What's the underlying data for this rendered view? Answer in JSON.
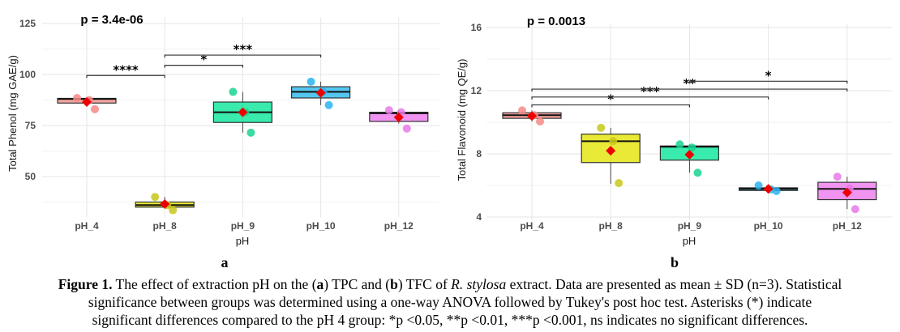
{
  "chart_data": [
    {
      "type": "box",
      "panel_label": "a",
      "title": "p = 3.4e-06",
      "xlabel": "pH",
      "ylabel": "Total Phenol (mg GAE/g)",
      "categories": [
        "pH_4",
        "pH_8",
        "pH_9",
        "pH_10",
        "pH_12"
      ],
      "ylim": [
        30,
        128
      ],
      "yticks": [
        50,
        75,
        100,
        125
      ],
      "grid": true,
      "colors": {
        "fill": [
          "#f4a09c",
          "#e8e82c",
          "#2eeaa8",
          "#4ac4ee",
          "#f08ef0"
        ],
        "points": [
          "#f48a86",
          "#c8c81c",
          "#18d490",
          "#2cb4ee",
          "#e87ae8"
        ],
        "mean": "#ee0000"
      },
      "boxes": [
        {
          "q1": 86.0,
          "median": 88.0,
          "q3": 88.3,
          "lo": 85.5,
          "hi": 88.5,
          "mean": 86.5,
          "points": [
            88.5,
            87.5,
            83.0
          ]
        },
        {
          "q1": 35.0,
          "median": 36.0,
          "q3": 37.5,
          "lo": 34.5,
          "hi": 40.0,
          "mean": 36.5,
          "points": [
            40.0,
            36.0,
            33.5
          ]
        },
        {
          "q1": 76.5,
          "median": 81.5,
          "q3": 86.5,
          "lo": 71.5,
          "hi": 91.5,
          "mean": 81.5,
          "points": [
            91.5,
            81.5,
            71.5
          ]
        },
        {
          "q1": 88.5,
          "median": 91.5,
          "q3": 94.0,
          "lo": 85.0,
          "hi": 96.5,
          "mean": 91.0,
          "points": [
            96.5,
            91.5,
            85.0
          ]
        },
        {
          "q1": 77.0,
          "median": 81.0,
          "q3": 81.5,
          "lo": 76.0,
          "hi": 82.5,
          "mean": 79.0,
          "points": [
            82.5,
            81.5,
            73.5
          ]
        }
      ],
      "comparisons": [
        {
          "from": "pH_4",
          "to": "pH_8",
          "y": 99.5,
          "label": "****"
        },
        {
          "from": "pH_8",
          "to": "pH_9",
          "y": 104.5,
          "label": "*"
        },
        {
          "from": "pH_8",
          "to": "pH_10",
          "y": 109.5,
          "label": "***"
        }
      ]
    },
    {
      "type": "box",
      "panel_label": "b",
      "title": "p = 0.0013",
      "xlabel": "pH",
      "ylabel": "Total Flavonoid (mg QE/g)",
      "categories": [
        "pH_4",
        "pH_8",
        "pH_9",
        "pH_10",
        "pH_12"
      ],
      "ylim": [
        3.8,
        16.2
      ],
      "yticks": [
        4,
        8,
        12,
        16
      ],
      "grid": true,
      "colors": {
        "fill": [
          "#f4a09c",
          "#e8e82c",
          "#2eeaa8",
          "#4ac4ee",
          "#f08ef0"
        ],
        "points": [
          "#f48a86",
          "#c8c81c",
          "#18d490",
          "#2cb4ee",
          "#e87ae8"
        ],
        "mean": "#ee0000"
      },
      "boxes": [
        {
          "q1": 10.25,
          "median": 10.45,
          "q3": 10.6,
          "lo": 10.05,
          "hi": 10.75,
          "mean": 10.4,
          "points": [
            10.75,
            10.45,
            10.05
          ]
        },
        {
          "q1": 7.45,
          "median": 8.8,
          "q3": 9.25,
          "lo": 6.1,
          "hi": 9.65,
          "mean": 8.2,
          "points": [
            9.65,
            8.8,
            6.15
          ]
        },
        {
          "q1": 7.6,
          "median": 8.45,
          "q3": 8.5,
          "lo": 6.8,
          "hi": 8.6,
          "mean": 7.95,
          "points": [
            8.6,
            8.4,
            6.8
          ]
        },
        {
          "q1": 5.68,
          "median": 5.78,
          "q3": 5.85,
          "lo": 5.65,
          "hi": 6.0,
          "mean": 5.78,
          "points": [
            6.0,
            5.75,
            5.65
          ]
        },
        {
          "q1": 5.1,
          "median": 5.78,
          "q3": 6.2,
          "lo": 4.5,
          "hi": 6.55,
          "mean": 5.55,
          "points": [
            6.55,
            5.8,
            4.5
          ]
        }
      ],
      "comparisons": [
        {
          "from": "pH_4",
          "to": "pH_9",
          "y": 11.1,
          "label": "*"
        },
        {
          "from": "pH_4",
          "to": "pH_10",
          "y": 11.6,
          "label": "***"
        },
        {
          "from": "pH_4",
          "to": "pH_12",
          "y": 12.1,
          "label": "**"
        },
        {
          "from": "pH_9",
          "to": "pH_12",
          "y": 12.6,
          "label": "*"
        }
      ]
    }
  ],
  "caption": {
    "label": "Figure 1.",
    "line1_a": " The effect of extraction pH on the (",
    "line1_b": "a",
    "line1_c": ") TPC and (",
    "line1_d": "b",
    "line1_e": ") TFC of ",
    "line1_f": "R. stylosa",
    "line1_g": " extract. Data are presented as mean ± SD (n=3). Statistical",
    "line2": "significance between groups was determined using a one-way ANOVA followed by Tukey's post hoc test. Asterisks (*) indicate",
    "line3": "significant differences compared to the pH 4 group: *p <0.05, **p <0.01, ***p <0.001, ns indicates no significant differences."
  }
}
